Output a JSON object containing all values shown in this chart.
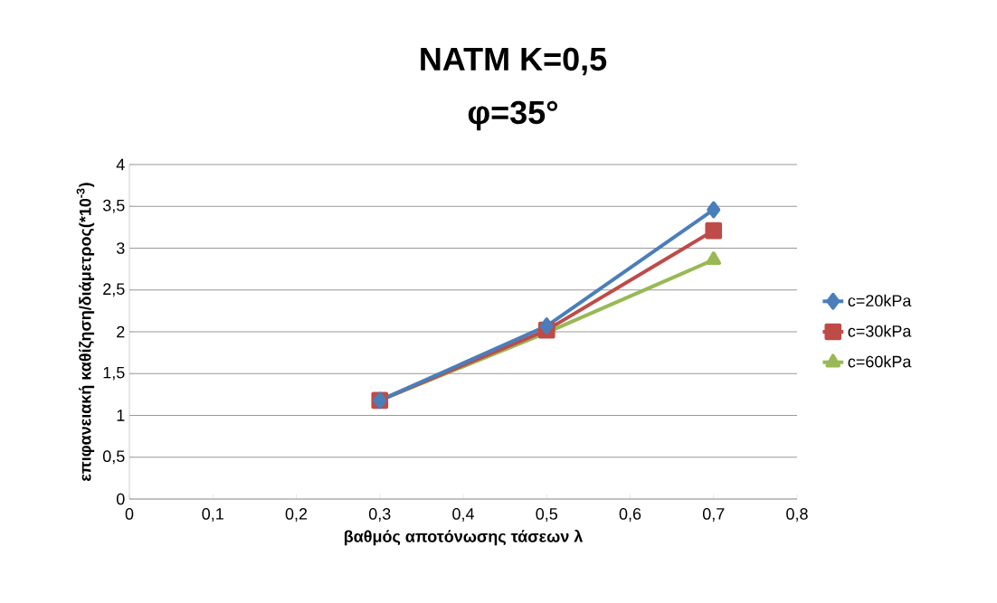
{
  "chart_data": {
    "type": "line",
    "title": "NATM K=0,5",
    "subtitle": "φ=35°",
    "xlabel": "βαθμός αποτόνωσης τάσεων λ",
    "ylabel": "επιφανειακή καθίζηση/διάμετρος(*10$^{-3}$)",
    "x": [
      0.3,
      0.5,
      0.7
    ],
    "series": [
      {
        "name": "c=20kPa",
        "color": "#4a7ebb",
        "marker": "diamond",
        "values": [
          1.18,
          2.07,
          3.46
        ]
      },
      {
        "name": "c=30kPa",
        "color": "#be4b48",
        "marker": "square",
        "values": [
          1.18,
          2.02,
          3.21
        ]
      },
      {
        "name": "c=60kPa",
        "color": "#98b954",
        "marker": "triangle",
        "values": [
          1.18,
          1.99,
          2.86
        ]
      }
    ],
    "xlim": [
      0,
      0.8
    ],
    "xticks": [
      0,
      {
        "value": 0.1,
        "label": "0,1"
      },
      {
        "value": 0.2,
        "label": "0,2"
      },
      {
        "value": 0.3,
        "label": "0,3"
      },
      {
        "value": 0.4,
        "label": "0,4"
      },
      {
        "value": 0.5,
        "label": "0,5"
      },
      {
        "value": 0.6,
        "label": "0,6"
      },
      {
        "value": 0.7,
        "label": "0,7"
      },
      {
        "value": 0.8,
        "label": "0,8"
      }
    ],
    "ylim": [
      0,
      4
    ],
    "yticks": [
      0,
      {
        "value": 0.5,
        "label": "0,5"
      },
      1,
      {
        "value": 1.5,
        "label": "1,5"
      },
      2,
      {
        "value": 2.5,
        "label": "2,5"
      },
      3,
      {
        "value": 3.5,
        "label": "3,5"
      },
      4
    ],
    "grid": "y",
    "legend": "right",
    "line_style": "solid"
  }
}
